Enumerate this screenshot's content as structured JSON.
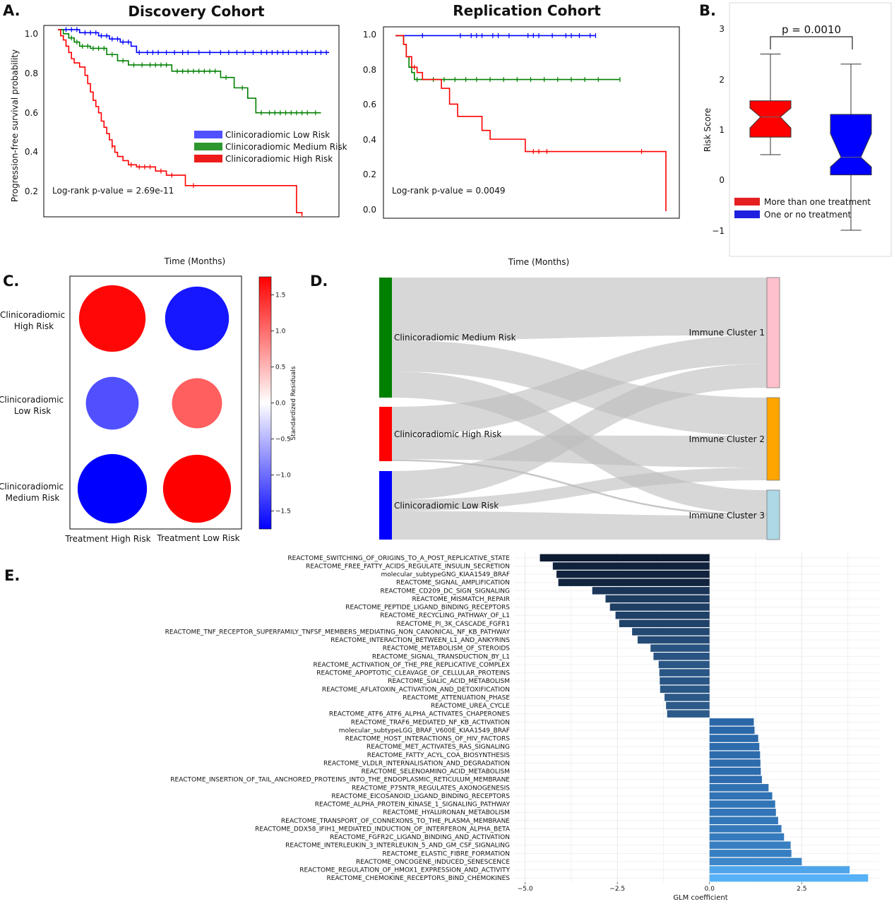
{
  "panel_letters": [
    "A.",
    "B.",
    "C.",
    "D.",
    "E."
  ],
  "chart_data": [
    {
      "type": "line",
      "panel": "A.",
      "title": "Discovery Cohort",
      "xlabel": "Time (Months)",
      "ylabel": "Progression-free survival probability",
      "yticks": [
        "0.2",
        "0.4",
        "0.6",
        "0.8",
        "1.0"
      ],
      "ylim": [
        0.1,
        1.02
      ],
      "xlim": [
        0,
        100
      ],
      "annotation": "Log-rank p-value = 2.69e-11",
      "legend_position": "center-right",
      "series": [
        {
          "name": "Clinicoradiomic Low Risk",
          "color": "#0000ff",
          "steps": [
            [
              0,
              1.0
            ],
            [
              8,
              0.985
            ],
            [
              15,
              0.97
            ],
            [
              19,
              0.955
            ],
            [
              23,
              0.94
            ],
            [
              27,
              0.92
            ],
            [
              29,
              0.89
            ],
            [
              100,
              0.89
            ]
          ],
          "censor": [
            3,
            5,
            7,
            10,
            12,
            14,
            16,
            18,
            20,
            22,
            24,
            26,
            30,
            33,
            35,
            37,
            40,
            43,
            46,
            48,
            52,
            56,
            60,
            63,
            66,
            69,
            72,
            75,
            77,
            79,
            81,
            83,
            85,
            88,
            90,
            92,
            95,
            97,
            99
          ]
        },
        {
          "name": "Clinicoradiomic Medium Risk",
          "color": "#008000",
          "steps": [
            [
              0,
              1.0
            ],
            [
              2,
              0.98
            ],
            [
              4,
              0.96
            ],
            [
              6,
              0.94
            ],
            [
              8,
              0.92
            ],
            [
              12,
              0.91
            ],
            [
              18,
              0.88
            ],
            [
              22,
              0.85
            ],
            [
              26,
              0.83
            ],
            [
              42,
              0.8
            ],
            [
              60,
              0.77
            ],
            [
              65,
              0.72
            ],
            [
              70,
              0.67
            ],
            [
              73,
              0.6
            ],
            [
              97,
              0.6
            ]
          ],
          "censor": [
            5,
            7,
            9,
            11,
            13,
            15,
            17,
            20,
            24,
            28,
            31,
            34,
            36,
            38,
            40,
            44,
            46,
            48,
            50,
            52,
            54,
            56,
            58,
            62,
            68,
            75,
            78,
            80,
            82,
            84,
            86,
            88,
            90,
            92,
            95
          ]
        },
        {
          "name": "Clinicoradiomic High Risk",
          "color": "#ff0000",
          "steps": [
            [
              0,
              1.0
            ],
            [
              1,
              0.97
            ],
            [
              2,
              0.95
            ],
            [
              3,
              0.92
            ],
            [
              4,
              0.89
            ],
            [
              5,
              0.86
            ],
            [
              6,
              0.84
            ],
            [
              8,
              0.82
            ],
            [
              10,
              0.78
            ],
            [
              11,
              0.74
            ],
            [
              12,
              0.7
            ],
            [
              13,
              0.66
            ],
            [
              14,
              0.63
            ],
            [
              15,
              0.6
            ],
            [
              16,
              0.56
            ],
            [
              17,
              0.53
            ],
            [
              18,
              0.5
            ],
            [
              19,
              0.47
            ],
            [
              20,
              0.44
            ],
            [
              21,
              0.41
            ],
            [
              22,
              0.39
            ],
            [
              24,
              0.37
            ],
            [
              26,
              0.35
            ],
            [
              29,
              0.34
            ],
            [
              36,
              0.32
            ],
            [
              40,
              0.3
            ],
            [
              47,
              0.25
            ],
            [
              88,
              0.12
            ],
            [
              90,
              0.11
            ]
          ],
          "censor": [
            20,
            27,
            30,
            32,
            34,
            38,
            42,
            50,
            90
          ]
        }
      ]
    },
    {
      "type": "line",
      "panel": "",
      "title": "Replication Cohort",
      "xlabel": "Time (Months)",
      "ylabel": "",
      "yticks": [
        "0.0",
        "0.2",
        "0.4",
        "0.6",
        "0.8",
        "1.0"
      ],
      "ylim": [
        -0.04,
        1.05
      ],
      "xlim": [
        0,
        100
      ],
      "annotation": "Log-rank p-value = 0.0049",
      "series": [
        {
          "name": "",
          "color": "#0000ff",
          "steps": [
            [
              0,
              1.0
            ],
            [
              74,
              1.0
            ]
          ],
          "censor": [
            10,
            24,
            28,
            30,
            32,
            36,
            38,
            42,
            49,
            51,
            53,
            58,
            63,
            65,
            68,
            72,
            74
          ]
        },
        {
          "name": "",
          "color": "#008000",
          "steps": [
            [
              0,
              1.0
            ],
            [
              3,
              0.95
            ],
            [
              4,
              0.88
            ],
            [
              5,
              0.82
            ],
            [
              6,
              0.79
            ],
            [
              7,
              0.75
            ],
            [
              83,
              0.75
            ]
          ],
          "censor": [
            8,
            14,
            18,
            22,
            26,
            30,
            35,
            40,
            45,
            50,
            55,
            60,
            65,
            70,
            75,
            83
          ]
        },
        {
          "name": "",
          "color": "#ff0000",
          "steps": [
            [
              0,
              1.0
            ],
            [
              3,
              0.95
            ],
            [
              4,
              0.88
            ],
            [
              6,
              0.82
            ],
            [
              8,
              0.79
            ],
            [
              10,
              0.75
            ],
            [
              17,
              0.7
            ],
            [
              20,
              0.61
            ],
            [
              23,
              0.54
            ],
            [
              32,
              0.46
            ],
            [
              35,
              0.41
            ],
            [
              48,
              0.34
            ],
            [
              100,
              0.34
            ],
            [
              100,
              0.0
            ]
          ],
          "censor": [
            7,
            51,
            53,
            56,
            91
          ]
        }
      ]
    },
    {
      "type": "box",
      "panel": "B.",
      "ylabel": "Risk Score",
      "yticks": [
        "−1",
        "0",
        "1",
        "2",
        "3"
      ],
      "ylim": [
        -1.2,
        3.3
      ],
      "annotation": "p = 0.0010",
      "legend_position": "lower-left",
      "series": [
        {
          "name": "More than one treatment",
          "color": "#ff0000",
          "whisker_low": 0.5,
          "q1": 0.85,
          "median": 1.25,
          "q3": 1.57,
          "whisker_high": 2.5
        },
        {
          "name": "One or no treatment",
          "color": "#0000ff",
          "whisker_low": -1.0,
          "q1": 0.1,
          "median": 0.45,
          "q3": 1.3,
          "whisker_high": 2.3
        }
      ]
    },
    {
      "type": "heatmap",
      "panel": "C.",
      "rows": [
        "Clinicoradiomic\nHigh Risk",
        "Clinicoradiomic\nLow Risk",
        "Clinicoradiomic\nMedium Risk"
      ],
      "columns": [
        "Treatment High Risk",
        "Treatment Low Risk"
      ],
      "values": [
        [
          1.7,
          -1.6
        ],
        [
          -1.2,
          1.1
        ],
        [
          -1.8,
          1.75
        ]
      ],
      "colorbar_label": "Standardized Residuals",
      "colorbar_ticks": [
        "1.5",
        "1.0",
        "0.5",
        "0.0",
        "−0.5",
        "−1.0",
        "−1.5"
      ],
      "colorbar_tick_values": [
        1.5,
        1.0,
        0.5,
        0.0,
        -0.5,
        -1.0,
        -1.5
      ],
      "colorbar_range": [
        -1.75,
        1.75
      ]
    },
    {
      "type": "sankey",
      "panel": "D.",
      "sources": [
        {
          "name": "Clinicoradiomic Medium Risk",
          "color": "#008000"
        },
        {
          "name": "Clinicoradiomic High Risk",
          "color": "#ff0000"
        },
        {
          "name": "Clinicoradiomic Low Risk",
          "color": "#0000ff"
        }
      ],
      "targets": [
        {
          "name": "Immune Cluster 1",
          "color": "#ffc0cb"
        },
        {
          "name": "Immune Cluster 2",
          "color": "#ffa500"
        },
        {
          "name": "Immune Cluster 3",
          "color": "#add8e6"
        }
      ],
      "flows": [
        {
          "source": 0,
          "target": 0,
          "value": 12
        },
        {
          "source": 0,
          "target": 1,
          "value": 6
        },
        {
          "source": 0,
          "target": 2,
          "value": 5
        },
        {
          "source": 1,
          "target": 0,
          "value": 6
        },
        {
          "source": 1,
          "target": 1,
          "value": 5
        },
        {
          "source": 1,
          "target": 2,
          "value": 0.4
        },
        {
          "source": 2,
          "target": 0,
          "value": 5
        },
        {
          "source": 2,
          "target": 1,
          "value": 2
        },
        {
          "source": 2,
          "target": 2,
          "value": 5
        }
      ]
    },
    {
      "type": "bar",
      "orientation": "horizontal",
      "panel": "E.",
      "xlabel": "GLM coefficient",
      "xticks": [
        "−5.0",
        "−2.5",
        "0.0",
        "2.5"
      ],
      "xtick_values": [
        -5.0,
        -2.5,
        0.0,
        2.5
      ],
      "xlim": [
        -5.3,
        4.6
      ],
      "categories": [
        "REACTOME_SWITCHING_OF_ORIGINS_TO_A_POST_REPLICATIVE_STATE",
        "REACTOME_FREE_FATTY_ACIDS_REGULATE_INSULIN_SECRETION",
        "molecular_subtypeGNG_KIAA1549_BRAF",
        "REACTOME_SIGNAL_AMPLIFICATION",
        "REACTOME_CD209_DC_SIGN_SIGNALING",
        "REACTOME_MISMATCH_REPAIR",
        "REACTOME_PEPTIDE_LIGAND_BINDING_RECEPTORS",
        "REACTOME_RECYCLING_PATHWAY_OF_L1",
        "REACTOME_PI_3K_CASCADE_FGFR1",
        "REACTOME_TNF_RECEPTOR_SUPERFAMILY_TNFSF_MEMBERS_MEDIATING_NON_CANONICAL_NF_KB_PATHWAY",
        "REACTOME_INTERACTION_BETWEEN_L1_AND_ANKYRINS",
        "REACTOME_METABOLISM_OF_STEROIDS",
        "REACTOME_SIGNAL_TRANSDUCTION_BY_L1",
        "REACTOME_ACTIVATION_OF_THE_PRE_REPLICATIVE_COMPLEX",
        "REACTOME_APOPTOTIC_CLEAVAGE_OF_CELLULAR_PROTEINS",
        "REACTOME_SIALIC_ACID_METABOLISM",
        "REACTOME_AFLATOXIN_ACTIVATION_AND_DETOXIFICATION",
        "REACTOME_ATTENUATION_PHASE",
        "REACTOME_UREA_CYCLE",
        "REACTOME_ATF6_ATF6_ALPHA_ACTIVATES_CHAPERONES",
        "REACTOME_TRAF6_MEDIATED_NF_KB_ACTIVATION",
        "molecular_subtypeLGG_BRAF_V600E_KIAA1549_BRAF",
        "REACTOME_HOST_INTERACTIONS_OF_HIV_FACTORS",
        "REACTOME_MET_ACTIVATES_RAS_SIGNALING",
        "REACTOME_FATTY_ACYL_COA_BIOSYNTHESIS",
        "REACTOME_VLDLR_INTERNALISATION_AND_DEGRADATION",
        "REACTOME_SELENOAMINO_ACID_METABOLISM",
        "REACTOME_INSERTION_OF_TAIL_ANCHORED_PROTEINS_INTO_THE_ENDOPLASMIC_RETICULUM_MEMBRANE",
        "REACTOME_P75NTR_REGULATES_AXONOGENESIS",
        "REACTOME_EICOSANOID_LIGAND_BINDING_RECEPTORS",
        "REACTOME_ALPHA_PROTEIN_KINASE_1_SIGNALING_PATHWAY",
        "REACTOME_HYALURONAN_METABOLISM",
        "REACTOME_TRANSPORT_OF_CONNEXONS_TO_THE_PLASMA_MEMBRANE",
        "REACTOME_DDX58_IFIH1_MEDIATED_INDUCTION_OF_INTERFERON_ALPHA_BETA",
        "REACTOME_FGFR2C_LIGAND_BINDING_AND_ACTIVATION",
        "REACTOME_INTERLEUKIN_3_INTERLEUKIN_5_AND_GM_CSF_SIGNALING",
        "REACTOME_ELASTIC_FIBRE_FORMATION",
        "REACTOME_ONCOGENE_INDUCED_SENESCENCE",
        "REACTOME_REGULATION_OF_HMOX1_EXPRESSION_AND_ACTIVITY",
        "REACTOME_CHEMOKINE_RECEPTORS_BIND_CHEMOKINES"
      ],
      "values": [
        -4.6,
        -4.25,
        -4.15,
        -4.1,
        -3.18,
        -2.82,
        -2.7,
        -2.55,
        -2.45,
        -2.1,
        -1.95,
        -1.6,
        -1.52,
        -1.38,
        -1.36,
        -1.35,
        -1.34,
        -1.22,
        -1.18,
        -1.15,
        1.2,
        1.22,
        1.32,
        1.35,
        1.37,
        1.38,
        1.39,
        1.42,
        1.6,
        1.7,
        1.78,
        1.8,
        1.86,
        1.95,
        2.02,
        2.2,
        2.22,
        2.5,
        3.8,
        4.3
      ],
      "colors": {
        "most_negative": "#0d1b33",
        "least_negative": "#2c5a8a",
        "least_positive": "#2a67a8",
        "most_positive": "#56b1f7"
      }
    }
  ]
}
